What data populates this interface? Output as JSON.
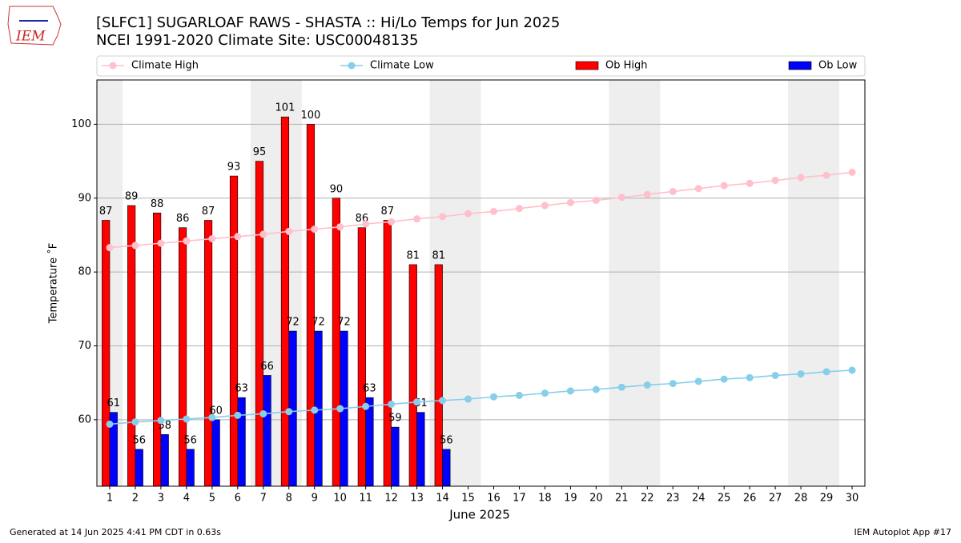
{
  "chart_data": {
    "type": "bar_line",
    "title": "[SLFC1] SUGARLOAF RAWS - SHASTA :: Hi/Lo Temps for Jun 2025",
    "subtitle": "NCEI 1991-2020 Climate Site: USC00048135",
    "xlabel": "June 2025",
    "ylabel": "Temperature ˚F",
    "logo_text": "IEM",
    "footer_left": "Generated at 14 Jun 2025 4:41 PM CDT in 0.63s",
    "footer_right": "IEM Autoplot App #17",
    "x": [
      1,
      2,
      3,
      4,
      5,
      6,
      7,
      8,
      9,
      10,
      11,
      12,
      13,
      14,
      15,
      16,
      17,
      18,
      19,
      20,
      21,
      22,
      23,
      24,
      25,
      26,
      27,
      28,
      29,
      30
    ],
    "series": [
      {
        "name": "Climate High",
        "kind": "line",
        "color": "#ffc0cb",
        "values": [
          83.3,
          83.6,
          83.9,
          84.2,
          84.5,
          84.8,
          85.1,
          85.5,
          85.8,
          86.1,
          86.5,
          86.8,
          87.2,
          87.5,
          87.9,
          88.2,
          88.6,
          89.0,
          89.4,
          89.7,
          90.1,
          90.5,
          90.9,
          91.3,
          91.7,
          92.0,
          92.4,
          92.8,
          93.1,
          93.5
        ]
      },
      {
        "name": "Climate Low",
        "kind": "line",
        "color": "#87ceeb",
        "values": [
          59.4,
          59.7,
          59.9,
          60.1,
          60.3,
          60.6,
          60.8,
          61.1,
          61.3,
          61.5,
          61.8,
          62.1,
          62.4,
          62.6,
          62.8,
          63.1,
          63.3,
          63.6,
          63.9,
          64.1,
          64.4,
          64.7,
          64.9,
          65.2,
          65.5,
          65.7,
          66.0,
          66.2,
          66.5,
          66.7
        ]
      },
      {
        "name": "Ob High",
        "kind": "bar",
        "color": "#ff0000",
        "values": [
          87,
          89,
          88,
          86,
          87,
          93,
          95,
          101,
          100,
          90,
          86,
          87,
          81,
          81,
          null,
          null,
          null,
          null,
          null,
          null,
          null,
          null,
          null,
          null,
          null,
          null,
          null,
          null,
          null,
          null
        ]
      },
      {
        "name": "Ob Low",
        "kind": "bar",
        "color": "#0000ff",
        "values": [
          61,
          56,
          58,
          56,
          60,
          63,
          66,
          72,
          72,
          72,
          63,
          59,
          61,
          56,
          null,
          null,
          null,
          null,
          null,
          null,
          null,
          null,
          null,
          null,
          null,
          null,
          null,
          null,
          null,
          null
        ]
      }
    ],
    "weekend_shading": [
      1,
      7,
      8,
      14,
      15,
      21,
      22,
      28,
      29
    ],
    "xlim": [
      0.5,
      30.5
    ],
    "xticks": [
      1,
      2,
      3,
      4,
      5,
      6,
      7,
      8,
      9,
      10,
      11,
      12,
      13,
      14,
      15,
      16,
      17,
      18,
      19,
      20,
      21,
      22,
      23,
      24,
      25,
      26,
      27,
      28,
      29,
      30
    ],
    "ylim": [
      51,
      106
    ],
    "yticks": [
      60,
      70,
      80,
      90,
      100
    ],
    "grid": true
  }
}
